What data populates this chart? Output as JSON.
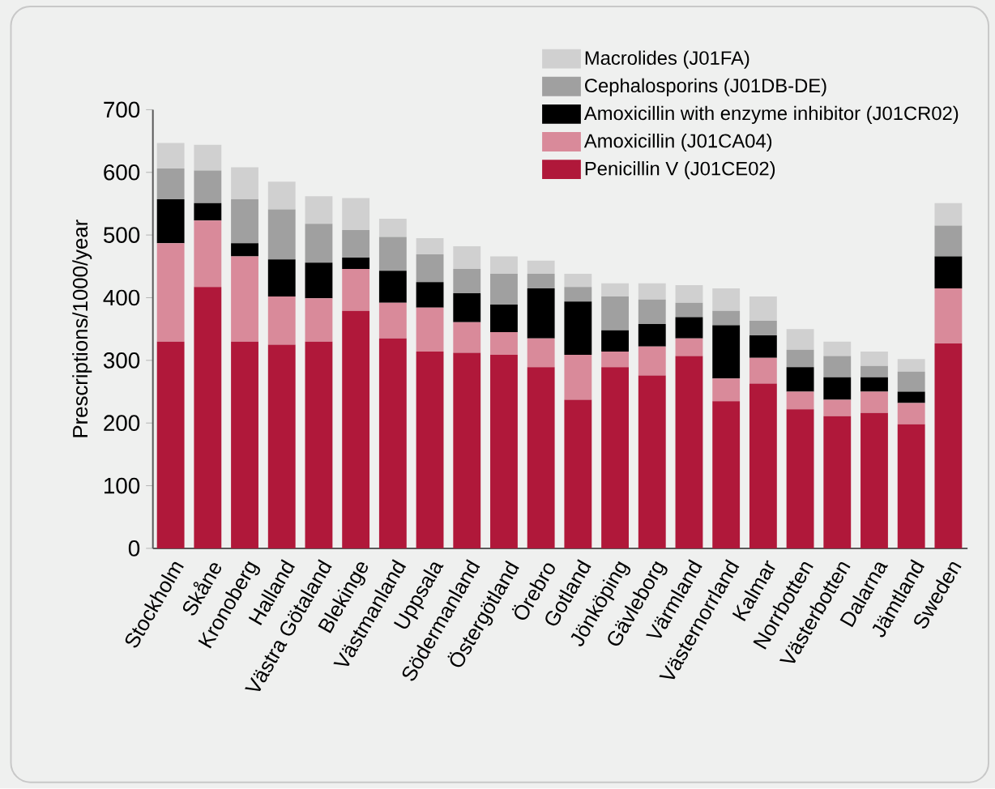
{
  "chart_data": {
    "type": "bar",
    "stacked": true,
    "ylabel": "Prescriptions/1000/year",
    "categories": [
      "Stockholm",
      "Skåne",
      "Kronoberg",
      "Halland",
      "Västra Götaland",
      "Blekinge",
      "Västmanland",
      "Uppsala",
      "Södermanland",
      "Östergötland",
      "Örebro",
      "Gotland",
      "Jönköping",
      "Gävleborg",
      "Värmland",
      "Västernorrland",
      "Kalmar",
      "Norrbotten",
      "Västerbotten",
      "Dalarna",
      "Jämtland",
      "Sweden"
    ],
    "series": [
      {
        "name": "Penicillin V (J01CE02)",
        "color": "#b0183a",
        "values": [
          330,
          417,
          330,
          325,
          330,
          379,
          335,
          314,
          312,
          309,
          289,
          237,
          289,
          276,
          307,
          235,
          263,
          222,
          211,
          216,
          198,
          327
        ]
      },
      {
        "name": "Amoxicillin (J01CA04)",
        "color": "#d98a9a",
        "values": [
          157,
          106,
          136,
          77,
          69,
          67,
          57,
          70,
          49,
          36,
          46,
          72,
          25,
          46,
          28,
          36,
          41,
          28,
          26,
          34,
          34,
          88
        ]
      },
      {
        "name": "Amoxicillin with enzyme inhibitor (J01CR02)",
        "color": "#000000",
        "values": [
          70,
          28,
          21,
          59,
          57,
          18,
          51,
          41,
          46,
          44,
          80,
          85,
          34,
          36,
          34,
          85,
          36,
          39,
          36,
          23,
          18,
          51
        ]
      },
      {
        "name": "Cephalosporins (J01DB-DE)",
        "color": "#a0a0a0",
        "values": [
          49,
          52,
          70,
          80,
          62,
          44,
          54,
          44,
          39,
          49,
          23,
          23,
          54,
          39,
          23,
          23,
          23,
          28,
          34,
          18,
          32,
          49
        ]
      },
      {
        "name": "Macrolides (J01FA)",
        "color": "#d0d0d0",
        "values": [
          41,
          41,
          51,
          44,
          44,
          51,
          29,
          26,
          36,
          28,
          21,
          21,
          21,
          26,
          28,
          36,
          39,
          33,
          23,
          23,
          20,
          36
        ]
      }
    ],
    "ylim": [
      0,
      700
    ],
    "yticks": [
      0,
      100,
      200,
      300,
      400,
      500,
      600,
      700
    ],
    "legend": "top right",
    "grid": false
  }
}
